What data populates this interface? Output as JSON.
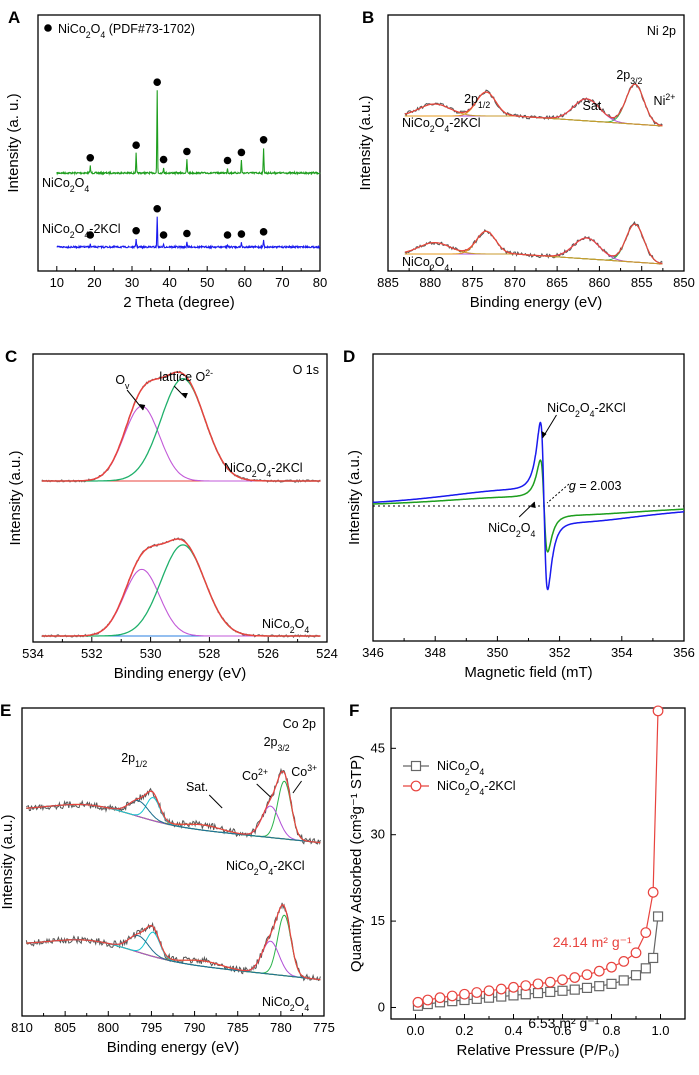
{
  "chart_data": [
    {
      "type": "line",
      "panel": "A",
      "xlabel": "2 Theta (degree)",
      "ylabel": "Intensity (a. u.)",
      "xlim": [
        5,
        80
      ],
      "xticks": [
        10,
        20,
        30,
        40,
        50,
        60,
        70,
        80
      ],
      "legend": "● NiCo₂O₄ (PDF#73-1702)",
      "peak_positions": [
        18.9,
        31.1,
        36.7,
        38.4,
        44.6,
        55.4,
        59.1,
        65.0
      ],
      "series": [
        {
          "name": "NiCo₂O₄",
          "color": "#1e9e1e",
          "heights": [
            0.08,
            0.22,
            0.92,
            0.06,
            0.15,
            0.05,
            0.14,
            0.28
          ]
        },
        {
          "name": "NiCo₂O₄-2KCl",
          "color": "#1a1aee",
          "heights": [
            0.05,
            0.15,
            0.55,
            0.04,
            0.1,
            0.04,
            0.09,
            0.13
          ]
        }
      ]
    },
    {
      "type": "line",
      "panel": "B",
      "title": "Ni 2p",
      "xlabel": "Binding energy (eV)",
      "ylabel": "Intensity (a.u.)",
      "xlim": [
        885,
        850
      ],
      "xticks": [
        885,
        880,
        875,
        870,
        865,
        860,
        855,
        850
      ],
      "annotations": [
        "2p1/2",
        "Sat.",
        "2p3/2",
        "Ni2+"
      ],
      "peaks_eV": [
        855.8,
        861.5,
        873.4,
        879.5
      ],
      "series": [
        {
          "name": "NiCo₂O₄-2KCl",
          "color": "#555555"
        },
        {
          "name": "NiCo₂O₄",
          "color": "#555555"
        }
      ]
    },
    {
      "type": "line",
      "panel": "C",
      "title": "O 1s",
      "xlabel": "Binding energy (eV)",
      "ylabel": "Intensity (a.u.)",
      "xlim": [
        534,
        524
      ],
      "xticks": [
        534,
        532,
        530,
        528,
        526,
        524
      ],
      "annotations": [
        "Ov",
        "lattice O2-"
      ],
      "peaks_eV": [
        530.3,
        528.9
      ],
      "series": [
        {
          "name": "NiCo₂O₄-2KCl",
          "color": "#e8433e"
        },
        {
          "name": "NiCo₂O₄",
          "color": "#e8433e"
        }
      ]
    },
    {
      "type": "line",
      "panel": "D",
      "xlabel": "Magnetic field (mT)",
      "ylabel": "Intensity (a.u.)",
      "xlim": [
        346,
        356
      ],
      "xticks": [
        346,
        348,
        350,
        352,
        354,
        356
      ],
      "g_value": "g = 2.003",
      "center_mT": 351.5,
      "series": [
        {
          "name": "NiCo₂O₄-2KCl",
          "color": "#1a1aee",
          "amplitude": 1.0
        },
        {
          "name": "NiCo₂O₄",
          "color": "#1e9e1e",
          "amplitude": 0.55
        }
      ]
    },
    {
      "type": "line",
      "panel": "E",
      "title": "Co 2p",
      "xlabel": "Binding energy (eV)",
      "ylabel": "Intensity (a.u.)",
      "xlim": [
        810,
        775
      ],
      "xticks": [
        810,
        805,
        800,
        795,
        790,
        785,
        780,
        775
      ],
      "annotations": [
        "2p1/2",
        "2p3/2",
        "Sat.",
        "Co2+",
        "Co3+"
      ],
      "peaks_eV": [
        779.6,
        781.2,
        794.8,
        796.5
      ],
      "series": [
        {
          "name": "NiCo₂O₄-2KCl",
          "color": "#555555"
        },
        {
          "name": "NiCo₂O₄",
          "color": "#555555"
        }
      ]
    },
    {
      "type": "scatter",
      "panel": "F",
      "xlabel": "Relative Pressure (P/P₀)",
      "ylabel": "Quantity Adsorbed (cm³g⁻¹ STP)",
      "xlim": [
        -0.1,
        1.1
      ],
      "ylim": [
        -2,
        52
      ],
      "xticks": [
        0.0,
        0.2,
        0.4,
        0.6,
        0.8,
        1.0
      ],
      "yticks": [
        0,
        15,
        30,
        45
      ],
      "x": [
        0.01,
        0.05,
        0.1,
        0.15,
        0.2,
        0.25,
        0.3,
        0.35,
        0.4,
        0.45,
        0.5,
        0.55,
        0.6,
        0.65,
        0.7,
        0.75,
        0.8,
        0.85,
        0.9,
        0.94,
        0.97,
        0.99
      ],
      "series": [
        {
          "name": "NiCo₂O₄",
          "color": "#666666",
          "marker": "square",
          "values": [
            0.3,
            0.6,
            0.9,
            1.1,
            1.3,
            1.5,
            1.7,
            1.9,
            2.1,
            2.3,
            2.5,
            2.7,
            2.9,
            3.1,
            3.4,
            3.7,
            4.1,
            4.7,
            5.6,
            6.8,
            8.6,
            15.8
          ]
        },
        {
          "name": "NiCo₂O₄-2KCl",
          "color": "#e8433e",
          "marker": "circle",
          "values": [
            0.9,
            1.3,
            1.7,
            2.0,
            2.3,
            2.6,
            2.9,
            3.2,
            3.5,
            3.8,
            4.1,
            4.4,
            4.8,
            5.2,
            5.7,
            6.3,
            7.0,
            8.0,
            9.5,
            13.0,
            20.0,
            51.5
          ]
        }
      ],
      "annotations": [
        {
          "text": "24.14 m² g⁻¹",
          "color": "#e8433e"
        },
        {
          "text": "6.53 m² g⁻¹",
          "color": "#000000"
        }
      ]
    }
  ]
}
